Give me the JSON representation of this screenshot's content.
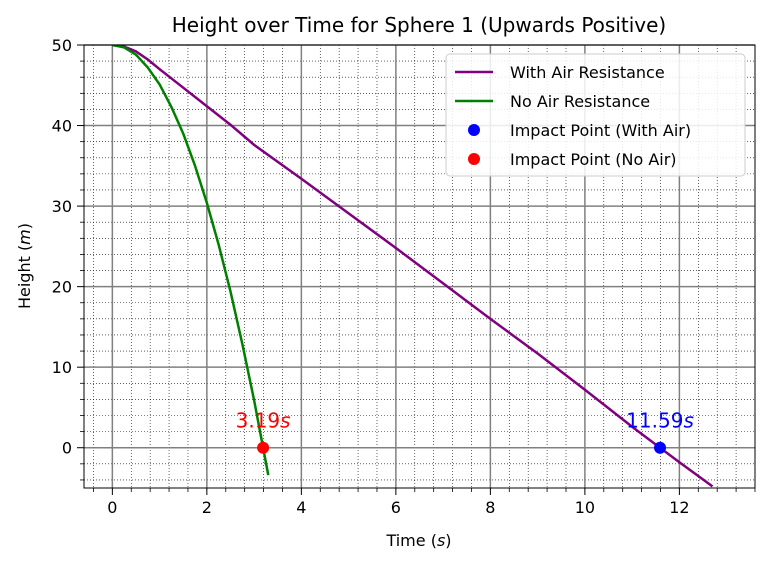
{
  "chart_data": {
    "type": "line",
    "title": "Height over Time for Sphere 1 (Upwards Positive)",
    "xlabel": {
      "prefix": "Time (",
      "var": "s",
      "suffix": ")"
    },
    "ylabel": {
      "prefix": "Height (",
      "var": "m",
      "suffix": ")"
    },
    "xlim": [
      -0.6,
      13.6
    ],
    "ylim": [
      -5,
      50
    ],
    "xticks": [
      0,
      2,
      4,
      6,
      8,
      10,
      12
    ],
    "yticks": [
      0,
      10,
      20,
      30,
      40,
      50
    ],
    "grid": {
      "major": true,
      "minor": true
    },
    "legend_position": "top-right",
    "series": [
      {
        "name": "With Air Resistance",
        "kind": "line",
        "color": "#800080",
        "x": [
          0,
          0.25,
          0.5,
          0.75,
          1.0,
          1.5,
          2.0,
          2.5,
          3.0,
          4.0,
          5.0,
          6.0,
          7.0,
          8.0,
          9.0,
          10.0,
          11.0,
          11.59,
          12.0,
          12.7
        ],
        "y": [
          50,
          49.8,
          49.2,
          48.2,
          47.0,
          44.7,
          42.4,
          40.1,
          37.6,
          33.4,
          29.1,
          24.8,
          20.4,
          16.0,
          11.7,
          7.2,
          2.6,
          0,
          -1.8,
          -4.8
        ]
      },
      {
        "name": "No Air Resistance",
        "kind": "line",
        "color": "#008000",
        "x": [
          0,
          0.25,
          0.5,
          0.75,
          1.0,
          1.25,
          1.5,
          1.75,
          2.0,
          2.25,
          2.5,
          2.75,
          3.0,
          3.19,
          3.3
        ],
        "y": [
          50,
          49.7,
          48.8,
          47.2,
          45.1,
          42.3,
          39.0,
          35.0,
          30.4,
          25.2,
          19.4,
          12.9,
          5.9,
          0,
          -3.4
        ]
      },
      {
        "name": "Impact Point (With Air)",
        "kind": "scatter",
        "color": "#0000ff",
        "x": [
          11.59
        ],
        "y": [
          0
        ]
      },
      {
        "name": "Impact Point (No Air)",
        "kind": "scatter",
        "color": "#ff0000",
        "x": [
          3.19
        ],
        "y": [
          0
        ]
      }
    ],
    "annotations": [
      {
        "number": "11.59",
        "unit": "s",
        "x": 11.59,
        "y": 0,
        "color": "#0000ff"
      },
      {
        "number": "3.19",
        "unit": "s",
        "x": 3.19,
        "y": 0,
        "color": "#ff0000"
      }
    ]
  }
}
